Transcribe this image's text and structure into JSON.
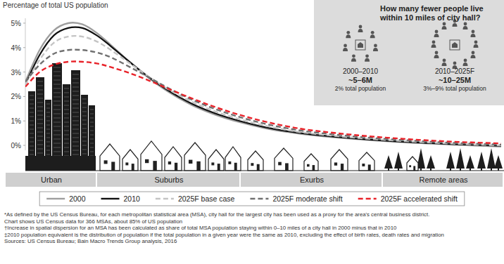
{
  "chart_data": {
    "type": "line",
    "y_label": "Percentage of total US population",
    "x": [
      0,
      3,
      6,
      9,
      12,
      15,
      18,
      22,
      26,
      30,
      35,
      40,
      45,
      50,
      55,
      60,
      70,
      80,
      90,
      100
    ],
    "xlim": [
      0,
      100
    ],
    "ylim": [
      -0.2,
      5.2
    ],
    "yticks": [
      {
        "value": 0,
        "label": "0%"
      },
      {
        "value": 1,
        "label": "1%"
      },
      {
        "value": 2,
        "label": "2%"
      },
      {
        "value": 3,
        "label": "3%"
      },
      {
        "value": 4,
        "label": "4%"
      },
      {
        "value": 5,
        "label": "5%"
      }
    ],
    "tick_labels": "y",
    "grid": false,
    "legend": "bottom",
    "series": [
      {
        "name": "2000",
        "color": "#9e9e9e",
        "line_style": "solid",
        "values": [
          2.6,
          3.9,
          4.7,
          5.0,
          4.95,
          4.6,
          4.1,
          3.4,
          2.75,
          2.2,
          1.65,
          1.25,
          0.95,
          0.72,
          0.55,
          0.42,
          0.25,
          0.12,
          0.03,
          -0.05
        ]
      },
      {
        "name": "2010",
        "color": "#111111",
        "line_style": "solid",
        "values": [
          2.5,
          3.7,
          4.5,
          4.8,
          4.8,
          4.5,
          4.05,
          3.4,
          2.78,
          2.25,
          1.7,
          1.3,
          1.0,
          0.76,
          0.58,
          0.45,
          0.27,
          0.14,
          0.05,
          -0.02
        ]
      },
      {
        "name": "2025F base case",
        "color": "#c4c4c4",
        "line_style": "dashed",
        "values": [
          2.5,
          3.5,
          4.2,
          4.45,
          4.45,
          4.25,
          3.9,
          3.35,
          2.8,
          2.3,
          1.78,
          1.38,
          1.07,
          0.82,
          0.63,
          0.49,
          0.3,
          0.17,
          0.07,
          0.0
        ]
      },
      {
        "name": "2025F moderate shift",
        "color": "#707070",
        "line_style": "dashed",
        "values": [
          2.6,
          3.3,
          3.75,
          3.9,
          3.9,
          3.8,
          3.6,
          3.2,
          2.78,
          2.35,
          1.87,
          1.48,
          1.16,
          0.9,
          0.7,
          0.55,
          0.35,
          0.21,
          0.1,
          0.03
        ]
      },
      {
        "name": "2025F accelerated shift",
        "color": "#e8232a",
        "line_style": "dashed",
        "values": [
          2.4,
          3.0,
          3.3,
          3.42,
          3.42,
          3.35,
          3.2,
          2.95,
          2.65,
          2.32,
          1.92,
          1.56,
          1.25,
          0.99,
          0.78,
          0.62,
          0.41,
          0.26,
          0.15,
          0.08
        ]
      }
    ],
    "regions": [
      "Urban",
      "Suburbs",
      "Exurbs",
      "Remote areas"
    ],
    "inset": {
      "title": "How many fewer people live within 10 miles of city hall?",
      "periods": [
        {
          "label": "2000–2010",
          "value": "~5–6M",
          "share": "2% total population"
        },
        {
          "label": "2010–2025F",
          "value": "~10–25M",
          "share": "3%–9% total population"
        }
      ]
    },
    "footnotes": [
      "*As defined by the US Census Bureau, for each metropolitan statistical area (MSA), city hall for the largest city has been used as a proxy for the area's central business district.",
      "Chart shows US Census data for 366 MSAs, about 85% of US population",
      "†Increase in spatial dispersion for an MSA has been calculated as share of total MSA population staying within 0–10 miles of a city hall in 2000 minus that in 2010",
      "‡2010 population equivalent is the distribution of population if the total population in a given year were the same as 2010, excluding the effect of birth rates, death rates and migration",
      "Sources: US Census Bureau; Bain Macro Trends Group analysis, 2016"
    ]
  }
}
